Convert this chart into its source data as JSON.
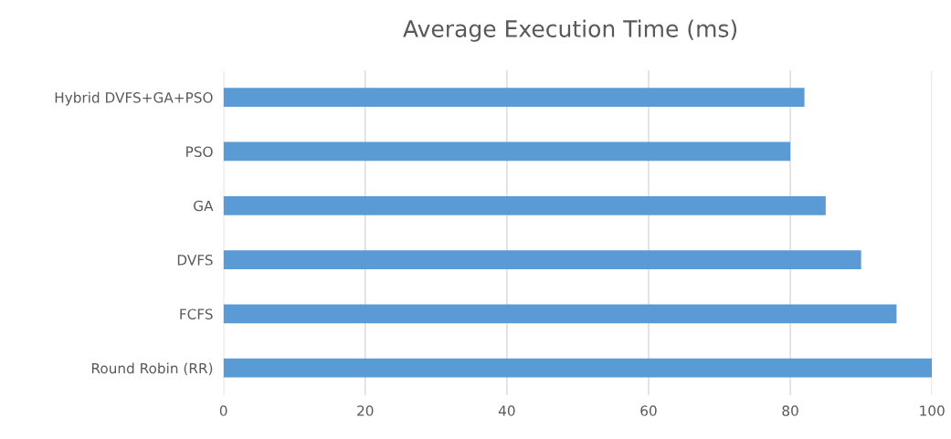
{
  "chart_data": {
    "type": "bar",
    "orientation": "horizontal",
    "title": "Average Execution Time (ms)",
    "categories": [
      "Hybrid DVFS+GA+PSO",
      "PSO",
      "GA",
      "DVFS",
      "FCFS",
      "Round Robin (RR)"
    ],
    "values": [
      82,
      80,
      85,
      90,
      95,
      100
    ],
    "color": "#5b9bd5",
    "xlim": [
      0,
      100
    ],
    "xticks": [
      0,
      20,
      40,
      60,
      80,
      100
    ],
    "grid": "x",
    "legend": false
  }
}
